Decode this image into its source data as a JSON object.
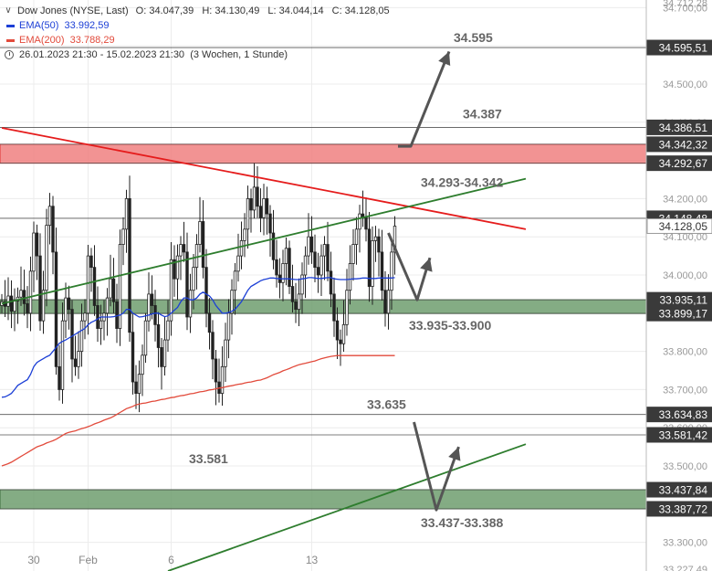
{
  "legend": {
    "instrument": "Dow Jones (NYSE, Last)",
    "open": "O: 34.047,39",
    "high": "H: 34.130,49",
    "low": "L: 34.044,14",
    "close": "C: 34.128,05",
    "ema50_label": "EMA(50)",
    "ema50_value": "33.992,59",
    "ema200_label": "EMA(200)",
    "ema200_value": "33.788,29",
    "range": "26.01.2023 21:30 - 15.02.2023 21:30",
    "period": "(3 Wochen, 1 Stunde)",
    "icons": [
      "chevron-down-icon",
      "clock-icon"
    ]
  },
  "colors": {
    "ema50": "#1c3fd6",
    "ema200": "#e24a3b",
    "resistance_zone": "#f08080",
    "support_zone": "#6e9e6e",
    "downtrend": "#e51c1c",
    "uptrend": "#2e7d2e",
    "arrow": "#555555",
    "candle": "#222222"
  },
  "chart_data": {
    "type": "candlestick",
    "title": "Dow Jones (NYSE, Last)",
    "timeframe": "1 Stunde",
    "ylim": [
      33225,
      34720
    ],
    "y_ticks": [
      33300,
      33400,
      33500,
      33600,
      33700,
      33800,
      33900,
      34000,
      34100,
      34200,
      34300,
      34400,
      34500,
      34600,
      34700
    ],
    "y_tick_labels": [
      "33.300,00",
      "33.400,00",
      "33.500,00",
      "33.600,00",
      "33.700,00",
      "33.800,00",
      "33.900,00",
      "34.000,00",
      "34.100,00",
      "34.200,00",
      "34.300,00",
      "34.400,00",
      "34.500,00",
      "34.600,00",
      "34.700,00"
    ],
    "x_tick_labels": [
      "30",
      "Feb",
      "6",
      "13"
    ],
    "edge_labels_top": [
      "34.712,28"
    ],
    "edge_labels_bottom": [
      "33.227,49"
    ],
    "price_labels": [
      {
        "value": 34595.51,
        "text": "34.595,51",
        "annotation": "34.595"
      },
      {
        "value": 34386.51,
        "text": "34.386,51",
        "annotation": "34.387"
      },
      {
        "value": 34342.32,
        "text": "34.342,32",
        "annotation": ""
      },
      {
        "value": 34292.67,
        "text": "34.292,67",
        "annotation": "34.293-34.342"
      },
      {
        "value": 34148.48,
        "text": "34.148,48",
        "annotation": ""
      },
      {
        "value": 34128.05,
        "text": "34.128,05",
        "annotation": "",
        "current": true
      },
      {
        "value": 33935.11,
        "text": "33.935,11",
        "annotation": "33.935-33.900"
      },
      {
        "value": 33899.17,
        "text": "33.899,17",
        "annotation": ""
      },
      {
        "value": 33634.83,
        "text": "33.634,83",
        "annotation": "33.635"
      },
      {
        "value": 33581.42,
        "text": "33.581,42",
        "annotation": "33.581"
      },
      {
        "value": 33437.84,
        "text": "33.437,84",
        "annotation": "33.437-33.388"
      },
      {
        "value": 33387.72,
        "text": "33.387,72",
        "annotation": ""
      }
    ],
    "zones": [
      {
        "name": "resistance",
        "from": 34292.67,
        "to": 34342.32
      },
      {
        "name": "support-upper",
        "from": 33899.17,
        "to": 33935.11
      },
      {
        "name": "support-lower",
        "from": 33387.72,
        "to": 33437.84
      }
    ],
    "trendlines": [
      {
        "name": "downtrend",
        "from": {
          "bar": 0,
          "price": 34385
        },
        "to": {
          "bar": 164,
          "price": 34120
        }
      },
      {
        "name": "uptrend-upper",
        "from": {
          "bar": 0,
          "price": 33925
        },
        "to": {
          "bar": 164,
          "price": 34252
        }
      },
      {
        "name": "uptrend-lower",
        "from": {
          "bar": 52,
          "price": 33225
        },
        "to": {
          "bar": 164,
          "price": 33557
        }
      }
    ],
    "candles_close": [
      33930,
      33918,
      33945,
      33905,
      33932,
      33942,
      33960,
      33925,
      33900,
      34010,
      34110,
      34050,
      33880,
      33960,
      34130,
      34180,
      34060,
      33760,
      33700,
      33880,
      33940,
      33910,
      33780,
      33760,
      33800,
      33880,
      33900,
      34050,
      34020,
      33920,
      33860,
      33880,
      33900,
      33940,
      33990,
      33930,
      33860,
      34080,
      34120,
      34200,
      33850,
      33720,
      33690,
      33740,
      33790,
      33880,
      33950,
      33920,
      33870,
      33810,
      33760,
      33830,
      33880,
      34040,
      33990,
      34050,
      34080,
      34060,
      33890,
      33960,
      34020,
      34080,
      34140,
      34020,
      33900,
      33850,
      33780,
      33720,
      33690,
      33760,
      33830,
      33900,
      33960,
      34010,
      34050,
      34090,
      34120,
      34200,
      34170,
      34230,
      34180,
      34150,
      34200,
      34160,
      34110,
      34040,
      34000,
      33980,
      34030,
      34070,
      33970,
      33930,
      33910,
      33950,
      34000,
      34050,
      34100,
      34060,
      34020,
      34000,
      34050,
      34080,
      34010,
      33950,
      33880,
      33830,
      33820,
      33870,
      33960,
      34030,
      34080,
      34120,
      34160,
      34150,
      34120,
      33970,
      34090,
      34100,
      34060,
      33960,
      33900,
      33960,
      34060,
      34128
    ],
    "ema50": [
      33680,
      33681,
      33685,
      33690,
      33700,
      33711,
      33716,
      33721,
      33726,
      33740,
      33760,
      33771,
      33776,
      33781,
      33786,
      33790,
      33800,
      33810,
      33821,
      33826,
      33830,
      33835,
      33840,
      33845,
      33850,
      33855,
      33860,
      33870,
      33876,
      33880,
      33885,
      33890,
      33890,
      33890,
      33890,
      33891,
      33893,
      33895,
      33900,
      33910,
      33910,
      33900,
      33895,
      33890,
      33891,
      33893,
      33895,
      33898,
      33900,
      33900,
      33895,
      33891,
      33893,
      33900,
      33908,
      33915,
      33930,
      33940,
      33940,
      33935,
      33935,
      33940,
      33950,
      33955,
      33950,
      33945,
      33935,
      33920,
      33910,
      33900,
      33900,
      33902,
      33905,
      33910,
      33920,
      33930,
      33945,
      33960,
      33970,
      33975,
      33980,
      33985,
      33988,
      33990,
      33992,
      33992,
      33991,
      33990,
      33990,
      33990,
      33990,
      33989,
      33988,
      33988,
      33990,
      33991,
      33993,
      33993,
      33992,
      33991,
      33991,
      33992,
      33993,
      33993,
      33990,
      33989,
      33988,
      33988,
      33988,
      33989,
      33990,
      33990,
      33991,
      33992,
      33992,
      33991,
      33991,
      33991,
      33992,
      33992,
      33992,
      33992,
      33992,
      33993
    ],
    "ema200": [
      33500,
      33503,
      33506,
      33510,
      33515,
      33520,
      33525,
      33530,
      33535,
      33540,
      33545,
      33550,
      33553,
      33556,
      33560,
      33563,
      33566,
      33570,
      33575,
      33580,
      33585,
      33588,
      33590,
      33592,
      33595,
      33598,
      33600,
      33603,
      33606,
      33610,
      33613,
      33616,
      33620,
      33623,
      33626,
      33630,
      33635,
      33640,
      33645,
      33650,
      33653,
      33656,
      33660,
      33662,
      33664,
      33665,
      33667,
      33669,
      33670,
      33672,
      33674,
      33675,
      33677,
      33679,
      33680,
      33682,
      33684,
      33685,
      33687,
      33689,
      33690,
      33692,
      33694,
      33695,
      33697,
      33699,
      33700,
      33702,
      33704,
      33705,
      33707,
      33709,
      33710,
      33712,
      33714,
      33715,
      33717,
      33719,
      33720,
      33722,
      33724,
      33725,
      33728,
      33731,
      33735,
      33739,
      33742,
      33745,
      33749,
      33752,
      33755,
      33759,
      33762,
      33765,
      33767,
      33769,
      33771,
      33773,
      33775,
      33778,
      33781,
      33783,
      33785,
      33787,
      33788,
      33789,
      33789,
      33789,
      33789,
      33789,
      33789,
      33789,
      33789,
      33789,
      33789,
      33789,
      33789,
      33789,
      33789,
      33789,
      33789,
      33789,
      33789,
      33789
    ]
  }
}
